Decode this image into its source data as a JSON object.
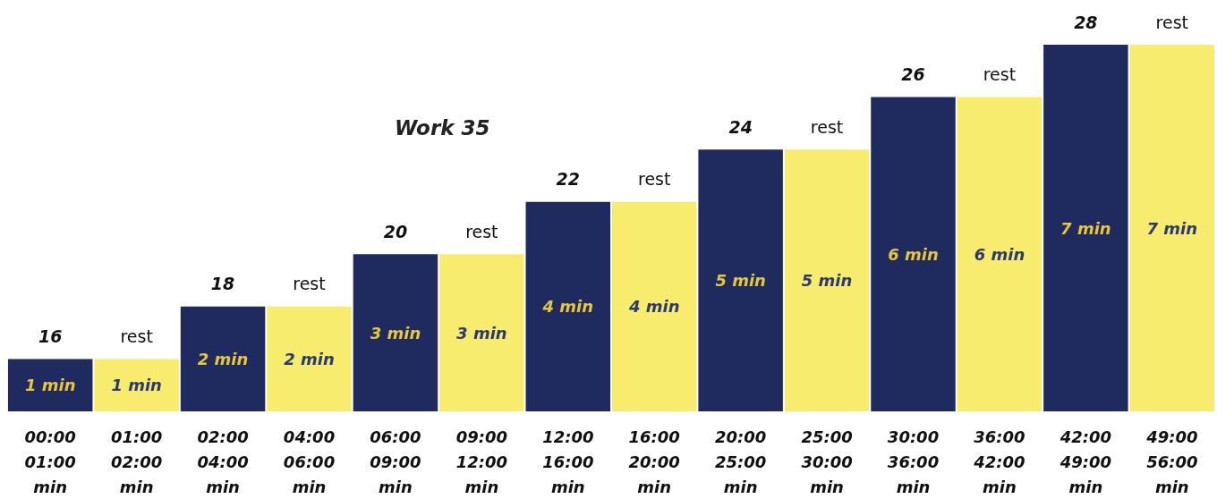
{
  "chart_data": {
    "type": "bar",
    "title": "Work 35",
    "categories": [
      "00:00\n01:00\nmin",
      "01:00\n02:00\nmin",
      "02:00\n04:00\nmin",
      "04:00\n06:00\nmin",
      "06:00\n09:00\nmin",
      "09:00\n12:00\nmin",
      "12:00\n16:00\nmin",
      "16:00\n20:00\nmin",
      "20:00\n25:00\nmin",
      "25:00\n30:00\nmin",
      "30:00\n36:00\nmin",
      "36:00\n42:00\nmin",
      "42:00\n49:00\nmin",
      "49:00\n56:00\nmin"
    ],
    "values": [
      1,
      1,
      2,
      2,
      3,
      3,
      4,
      4,
      5,
      5,
      6,
      6,
      7,
      7
    ],
    "colors": [
      "#1f2a5e",
      "#f7ec6e",
      "#1f2a5e",
      "#f7ec6e",
      "#1f2a5e",
      "#f7ec6e",
      "#1f2a5e",
      "#f7ec6e",
      "#1f2a5e",
      "#f7ec6e",
      "#1f2a5e",
      "#f7ec6e",
      "#1f2a5e",
      "#f7ec6e"
    ],
    "value_labels": [
      "1 min",
      "1 min",
      "2 min",
      "2 min",
      "3 min",
      "3 min",
      "4 min",
      "4 min",
      "5 min",
      "5 min",
      "6 min",
      "6 min",
      "7 min",
      "7 min"
    ],
    "annotations": [
      {
        "text": "16",
        "x": "00:00\n01:00\nmin",
        "y": 1
      },
      {
        "text": "rest",
        "x": "01:00\n02:00\nmin",
        "y": 1
      },
      {
        "text": "18",
        "x": "02:00\n04:00\nmin",
        "y": 2
      },
      {
        "text": "rest",
        "x": "04:00\n06:00\nmin",
        "y": 2
      },
      {
        "text": "20",
        "x": "06:00\n09:00\nmin",
        "y": 3
      },
      {
        "text": "rest",
        "x": "09:00\n12:00\nmin",
        "y": 3
      },
      {
        "text": "22",
        "x": "12:00\n16:00\nmin",
        "y": 4
      },
      {
        "text": "rest",
        "x": "16:00\n20:00\nmin",
        "y": 4
      },
      {
        "text": "24",
        "x": "20:00\n25:00\nmin",
        "y": 5
      },
      {
        "text": "rest",
        "x": "25:00\n30:00\nmin",
        "y": 5
      },
      {
        "text": "26",
        "x": "30:00\n36:00\nmin",
        "y": 6
      },
      {
        "text": "rest",
        "x": "36:00\n42:00\nmin",
        "y": 6
      },
      {
        "text": "28",
        "x": "42:00\n49:00\nmin",
        "y": 7
      },
      {
        "text": "rest",
        "x": "49:00\n56:00\nmin",
        "y": 7
      }
    ],
    "grid": false
  }
}
